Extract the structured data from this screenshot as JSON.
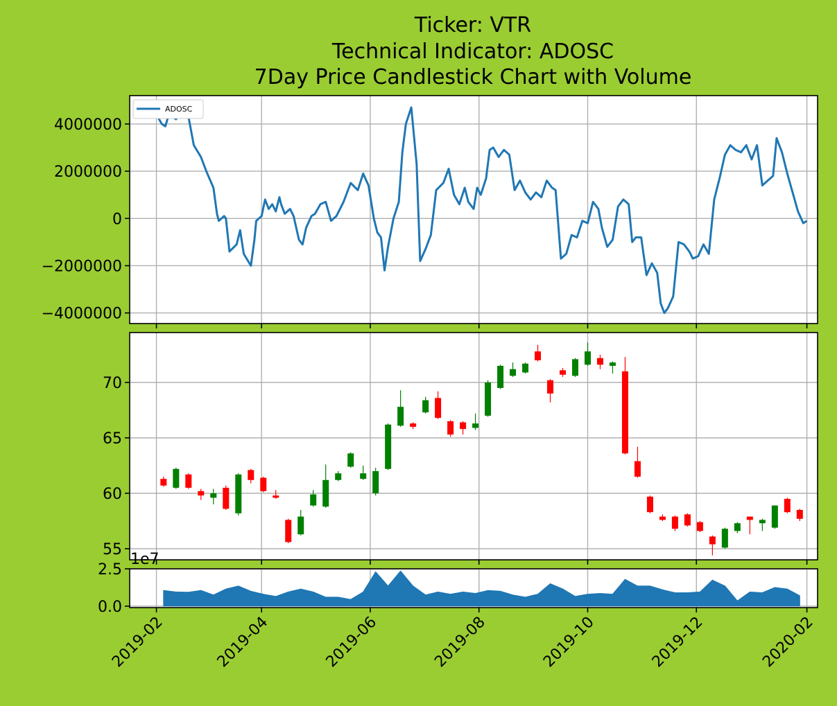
{
  "colors": {
    "figure_background": "#9acd32",
    "axes_background": "#ffffff",
    "line": "#1f77b4",
    "up": "#008000",
    "down": "#ff0000",
    "volume": "#1f77b4",
    "grid": "#b0b0b0"
  },
  "title": {
    "line1": "Ticker: VTR",
    "line2": "Technical Indicator: ADOSC",
    "line3": "7Day Price Candlestick Chart with Volume"
  },
  "chart_data": [
    {
      "type": "line",
      "panel": "indicator",
      "legend": {
        "entry": "ADOSC",
        "placement": "upper-left"
      },
      "grid": true,
      "xlim": [
        "2019-01-17",
        "2020-02-07"
      ],
      "ylim": [
        -4450000,
        5200000
      ],
      "yticks": [
        -4000000,
        -2000000,
        0,
        2000000,
        4000000
      ],
      "ytick_labels": [
        "−4000000",
        "−2000000",
        "0",
        "2000000",
        "4000000"
      ],
      "series": [
        {
          "name": "ADOSC",
          "x": [
            "2019-02-01",
            "2019-02-04",
            "2019-02-06",
            "2019-02-08",
            "2019-02-12",
            "2019-02-15",
            "2019-02-19",
            "2019-02-22",
            "2019-02-26",
            "2019-03-01",
            "2019-03-05",
            "2019-03-07",
            "2019-03-08",
            "2019-03-11",
            "2019-03-12",
            "2019-03-14",
            "2019-03-18",
            "2019-03-20",
            "2019-03-22",
            "2019-03-26",
            "2019-03-28",
            "2019-03-29",
            "2019-04-01",
            "2019-04-03",
            "2019-04-05",
            "2019-04-07",
            "2019-04-09",
            "2019-04-11",
            "2019-04-12",
            "2019-04-14",
            "2019-04-17",
            "2019-04-19",
            "2019-04-22",
            "2019-04-24",
            "2019-04-26",
            "2019-04-29",
            "2019-05-01",
            "2019-05-04",
            "2019-05-07",
            "2019-05-10",
            "2019-05-13",
            "2019-05-17",
            "2019-05-21",
            "2019-05-25",
            "2019-05-28",
            "2019-05-31",
            "2019-06-03",
            "2019-06-05",
            "2019-06-07",
            "2019-06-09",
            "2019-06-11",
            "2019-06-14",
            "2019-06-17",
            "2019-06-19",
            "2019-06-21",
            "2019-06-24",
            "2019-06-27",
            "2019-06-29",
            "2019-07-02",
            "2019-07-05",
            "2019-07-08",
            "2019-07-12",
            "2019-07-15",
            "2019-07-18",
            "2019-07-21",
            "2019-07-24",
            "2019-07-26",
            "2019-07-29",
            "2019-07-31",
            "2019-08-02",
            "2019-08-05",
            "2019-08-07",
            "2019-08-09",
            "2019-08-12",
            "2019-08-15",
            "2019-08-18",
            "2019-08-21",
            "2019-08-24",
            "2019-08-27",
            "2019-08-30",
            "2019-09-02",
            "2019-09-05",
            "2019-09-08",
            "2019-09-11",
            "2019-09-13",
            "2019-09-16",
            "2019-09-19",
            "2019-09-22",
            "2019-09-25",
            "2019-09-28",
            "2019-10-01",
            "2019-10-04",
            "2019-10-07",
            "2019-10-09",
            "2019-10-12",
            "2019-10-15",
            "2019-10-18",
            "2019-10-21",
            "2019-10-24",
            "2019-10-26",
            "2019-10-28",
            "2019-10-31",
            "2019-11-03",
            "2019-11-06",
            "2019-11-09",
            "2019-11-11",
            "2019-11-13",
            "2019-11-15",
            "2019-11-18",
            "2019-11-21",
            "2019-11-24",
            "2019-11-27",
            "2019-11-29",
            "2019-12-02",
            "2019-12-05",
            "2019-12-08",
            "2019-12-11",
            "2019-12-14",
            "2019-12-17",
            "2019-12-20",
            "2019-12-23",
            "2019-12-26",
            "2019-12-29",
            "2020-01-01",
            "2020-01-04",
            "2020-01-07",
            "2020-01-10",
            "2020-01-13",
            "2020-01-15",
            "2020-01-18",
            "2020-01-21",
            "2020-01-24",
            "2020-01-27",
            "2020-01-30",
            "2020-02-01"
          ],
          "y": [
            4400000,
            4000000,
            3900000,
            4400000,
            4200000,
            4500000,
            4300000,
            3100000,
            2600000,
            2000000,
            1300000,
            200000,
            -100000,
            100000,
            0,
            -1400000,
            -1100000,
            -500000,
            -1500000,
            -2000000,
            -900000,
            -100000,
            100000,
            800000,
            400000,
            600000,
            300000,
            900000,
            600000,
            200000,
            400000,
            100000,
            -900000,
            -1100000,
            -400000,
            100000,
            200000,
            600000,
            700000,
            -100000,
            100000,
            700000,
            1500000,
            1200000,
            1900000,
            1400000,
            0,
            -600000,
            -800000,
            -2200000,
            -1200000,
            0,
            700000,
            2800000,
            4000000,
            4700000,
            2300000,
            -1800000,
            -1300000,
            -700000,
            1200000,
            1500000,
            2100000,
            1000000,
            600000,
            1300000,
            700000,
            400000,
            1300000,
            1000000,
            1700000,
            2900000,
            3000000,
            2600000,
            2900000,
            2700000,
            1200000,
            1600000,
            1100000,
            800000,
            1100000,
            900000,
            1600000,
            1300000,
            1200000,
            -1700000,
            -1500000,
            -700000,
            -800000,
            -100000,
            -200000,
            700000,
            400000,
            -400000,
            -1200000,
            -900000,
            500000,
            800000,
            600000,
            -1000000,
            -800000,
            -800000,
            -2400000,
            -1900000,
            -2300000,
            -3600000,
            -4000000,
            -3800000,
            -3300000,
            -1000000,
            -1100000,
            -1400000,
            -1700000,
            -1600000,
            -1100000,
            -1500000,
            800000,
            1700000,
            2700000,
            3100000,
            2900000,
            2800000,
            3100000,
            2500000,
            3100000,
            1400000,
            1600000,
            1800000,
            3400000,
            2800000,
            1900000,
            1100000,
            300000,
            -200000,
            -100000
          ]
        }
      ]
    },
    {
      "type": "candlestick",
      "panel": "price",
      "grid": true,
      "xlim": [
        "2019-01-17",
        "2020-02-07"
      ],
      "ylim": [
        54.0,
        74.5
      ],
      "yticks": [
        55,
        60,
        65,
        70
      ],
      "ytick_labels": [
        "55",
        "60",
        "65",
        "70"
      ],
      "x": [
        "2019-02-05",
        "2019-02-12",
        "2019-02-19",
        "2019-02-26",
        "2019-03-05",
        "2019-03-12",
        "2019-03-19",
        "2019-03-26",
        "2019-04-02",
        "2019-04-09",
        "2019-04-16",
        "2019-04-23",
        "2019-04-30",
        "2019-05-07",
        "2019-05-14",
        "2019-05-21",
        "2019-05-28",
        "2019-06-04",
        "2019-06-11",
        "2019-06-18",
        "2019-06-25",
        "2019-07-02",
        "2019-07-09",
        "2019-07-16",
        "2019-07-23",
        "2019-07-30",
        "2019-08-06",
        "2019-08-13",
        "2019-08-20",
        "2019-08-27",
        "2019-09-03",
        "2019-09-10",
        "2019-09-17",
        "2019-09-24",
        "2019-10-01",
        "2019-10-08",
        "2019-10-15",
        "2019-10-22",
        "2019-10-29",
        "2019-11-05",
        "2019-11-12",
        "2019-11-19",
        "2019-11-26",
        "2019-12-03",
        "2019-12-10",
        "2019-12-17",
        "2019-12-24",
        "2019-12-31",
        "2020-01-07",
        "2020-01-14",
        "2020-01-21",
        "2020-01-28"
      ],
      "open": [
        61.3,
        60.5,
        61.7,
        60.2,
        59.6,
        60.5,
        58.2,
        62.1,
        61.4,
        59.8,
        57.6,
        56.3,
        58.9,
        58.8,
        61.2,
        62.4,
        61.3,
        60.0,
        62.2,
        66.1,
        66.3,
        67.3,
        68.6,
        66.5,
        66.4,
        65.9,
        67.0,
        69.5,
        70.6,
        70.9,
        72.8,
        70.2,
        71.1,
        70.6,
        71.6,
        72.2,
        71.5,
        71.0,
        62.9,
        59.7,
        57.9,
        57.9,
        58.1,
        57.4,
        56.1,
        55.1,
        56.6,
        57.9,
        57.3,
        56.9,
        59.5,
        58.5
      ],
      "close": [
        60.7,
        62.2,
        60.5,
        59.8,
        60.0,
        58.6,
        61.7,
        61.2,
        60.2,
        59.6,
        55.6,
        57.9,
        59.9,
        61.2,
        61.8,
        63.6,
        61.8,
        62.0,
        66.2,
        67.8,
        66.0,
        68.4,
        66.8,
        65.3,
        65.8,
        66.3,
        70.0,
        71.5,
        71.2,
        71.7,
        72.0,
        69.0,
        70.7,
        72.1,
        72.8,
        71.6,
        71.8,
        63.6,
        61.5,
        58.3,
        57.6,
        56.8,
        57.1,
        56.6,
        55.4,
        56.8,
        57.3,
        57.6,
        57.6,
        58.9,
        58.3,
        57.7
      ],
      "high": [
        61.5,
        62.3,
        61.8,
        60.4,
        60.4,
        60.7,
        61.8,
        62.2,
        61.5,
        60.3,
        57.7,
        58.5,
        60.3,
        62.6,
        62.0,
        63.7,
        62.5,
        62.3,
        66.3,
        69.3,
        66.4,
        68.7,
        69.2,
        66.6,
        66.5,
        67.2,
        70.2,
        71.6,
        71.8,
        71.8,
        73.4,
        70.3,
        71.3,
        72.2,
        73.6,
        72.5,
        71.9,
        72.3,
        64.2,
        59.8,
        58.1,
        58.0,
        58.2,
        57.5,
        56.2,
        56.9,
        57.4,
        57.9,
        57.7,
        58.9,
        59.6,
        58.6
      ],
      "low": [
        60.6,
        60.4,
        60.4,
        59.4,
        59.0,
        58.5,
        58.0,
        60.9,
        60.1,
        59.5,
        55.5,
        56.2,
        58.8,
        58.7,
        61.1,
        62.3,
        61.2,
        59.8,
        62.1,
        66.0,
        65.8,
        67.2,
        66.7,
        65.1,
        65.3,
        65.7,
        66.9,
        69.4,
        70.5,
        70.8,
        71.9,
        68.2,
        70.5,
        70.5,
        71.5,
        71.2,
        70.8,
        63.5,
        61.4,
        58.2,
        57.5,
        56.6,
        57.0,
        56.5,
        54.4,
        55.0,
        56.4,
        56.3,
        56.6,
        56.8,
        58.2,
        57.5
      ]
    },
    {
      "type": "area",
      "panel": "volume",
      "grid": true,
      "offset_label": "1e7",
      "xlim": [
        "2019-01-17",
        "2020-02-07"
      ],
      "ylim": [
        -0.1,
        2.5
      ],
      "yticks": [
        0.0,
        2.5
      ],
      "ytick_labels": [
        "0.0",
        "2.5"
      ],
      "xticks": [
        "2019-02-01",
        "2019-04-01",
        "2019-06-01",
        "2019-08-01",
        "2019-10-01",
        "2019-12-01",
        "2020-02-01"
      ],
      "xtick_labels": [
        "2019-02",
        "2019-04",
        "2019-06",
        "2019-08",
        "2019-10",
        "2019-12",
        "2020-02"
      ],
      "x": [
        "2019-02-05",
        "2019-02-12",
        "2019-02-19",
        "2019-02-26",
        "2019-03-05",
        "2019-03-12",
        "2019-03-19",
        "2019-03-26",
        "2019-04-02",
        "2019-04-09",
        "2019-04-16",
        "2019-04-23",
        "2019-04-30",
        "2019-05-07",
        "2019-05-14",
        "2019-05-21",
        "2019-05-28",
        "2019-06-04",
        "2019-06-11",
        "2019-06-18",
        "2019-06-25",
        "2019-07-02",
        "2019-07-09",
        "2019-07-16",
        "2019-07-23",
        "2019-07-30",
        "2019-08-06",
        "2019-08-13",
        "2019-08-20",
        "2019-08-27",
        "2019-09-03",
        "2019-09-10",
        "2019-09-17",
        "2019-09-24",
        "2019-10-01",
        "2019-10-08",
        "2019-10-15",
        "2019-10-22",
        "2019-10-29",
        "2019-11-05",
        "2019-11-12",
        "2019-11-19",
        "2019-11-26",
        "2019-12-03",
        "2019-12-10",
        "2019-12-17",
        "2019-12-24",
        "2019-12-31",
        "2020-01-07",
        "2020-01-14",
        "2020-01-21",
        "2020-01-28"
      ],
      "values": [
        1.05,
        0.95,
        0.93,
        1.05,
        0.75,
        1.15,
        1.35,
        1.0,
        0.8,
        0.65,
        0.95,
        1.15,
        0.95,
        0.6,
        0.6,
        0.45,
        0.95,
        2.3,
        1.35,
        2.35,
        1.35,
        0.75,
        0.95,
        0.8,
        0.95,
        0.85,
        1.05,
        1.0,
        0.75,
        0.6,
        0.8,
        1.5,
        1.15,
        0.65,
        0.8,
        0.85,
        0.8,
        1.8,
        1.35,
        1.35,
        1.1,
        0.9,
        0.9,
        0.95,
        1.75,
        1.35,
        0.35,
        0.95,
        0.9,
        1.25,
        1.15,
        0.7
      ]
    }
  ]
}
